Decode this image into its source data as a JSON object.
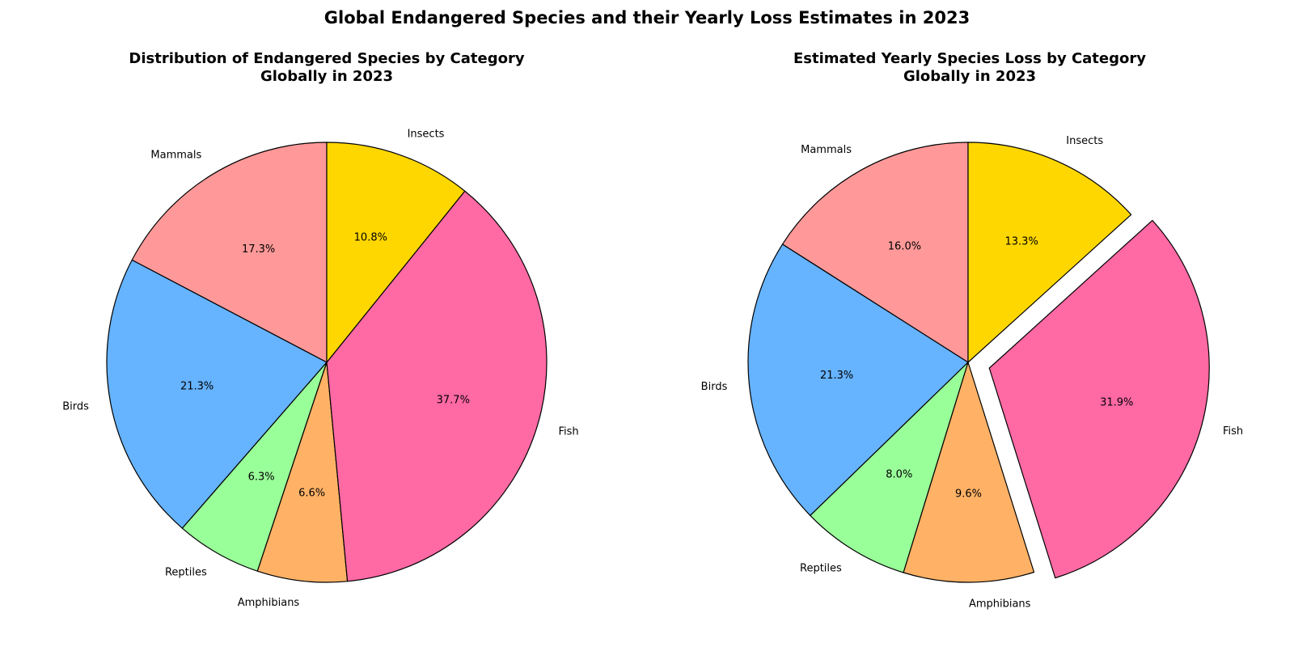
{
  "figure": {
    "title": "Global Endangered Species and their Yearly Loss Estimates in 2023"
  },
  "chart_data": [
    {
      "type": "pie",
      "title": "Distribution of Endangered Species by Category\nGlobally in 2023",
      "categories": [
        "Mammals",
        "Birds",
        "Reptiles",
        "Amphibians",
        "Fish",
        "Insects"
      ],
      "values": [
        17.3,
        21.3,
        6.3,
        6.6,
        37.7,
        10.8
      ],
      "value_labels": [
        "17.3%",
        "21.3%",
        "6.3%",
        "6.6%",
        "37.7%",
        "10.8%"
      ],
      "colors": [
        "#ff9999",
        "#66b3ff",
        "#99ff99",
        "#ffb266",
        "#ff69a4",
        "#ffd700"
      ],
      "exploded": []
    },
    {
      "type": "pie",
      "title": "Estimated Yearly Species Loss by Category\nGlobally in 2023",
      "categories": [
        "Mammals",
        "Birds",
        "Reptiles",
        "Amphibians",
        "Fish",
        "Insects"
      ],
      "values": [
        16.0,
        21.3,
        8.0,
        9.6,
        31.9,
        13.3
      ],
      "value_labels": [
        "16.0%",
        "21.3%",
        "8.0%",
        "9.6%",
        "31.9%",
        "13.3%"
      ],
      "colors": [
        "#ff9999",
        "#66b3ff",
        "#99ff99",
        "#ffb266",
        "#ff69a4",
        "#ffd700"
      ],
      "exploded": [
        "Fish"
      ]
    }
  ]
}
